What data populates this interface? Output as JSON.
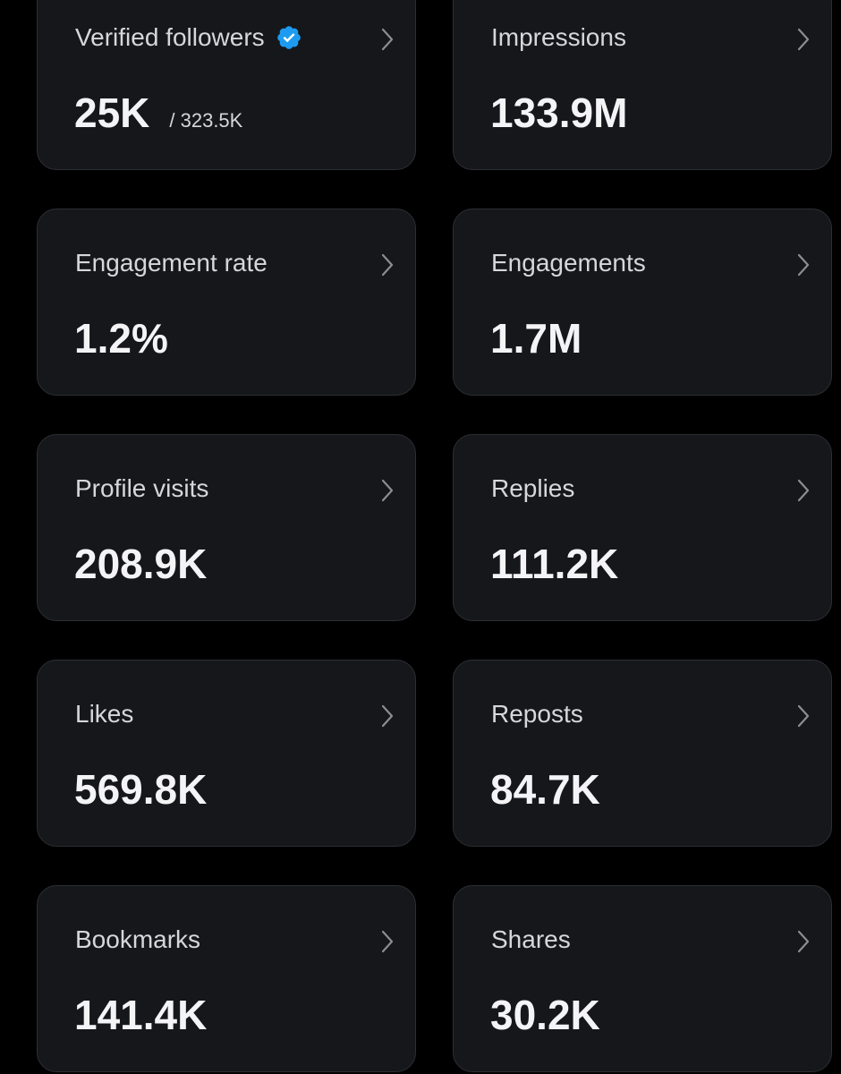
{
  "cards": [
    {
      "label": "Verified followers",
      "value": "25K",
      "sub": "/ 323.5K"
    },
    {
      "label": "Impressions",
      "value": "133.9M"
    },
    {
      "label": "Engagement rate",
      "value": "1.2%"
    },
    {
      "label": "Engagements",
      "value": "1.7M"
    },
    {
      "label": "Profile visits",
      "value": "208.9K"
    },
    {
      "label": "Replies",
      "value": "111.2K"
    },
    {
      "label": "Likes",
      "value": "569.8K"
    },
    {
      "label": "Reposts",
      "value": "84.7K"
    },
    {
      "label": "Bookmarks",
      "value": "141.4K"
    },
    {
      "label": "Shares",
      "value": "30.2K"
    }
  ]
}
